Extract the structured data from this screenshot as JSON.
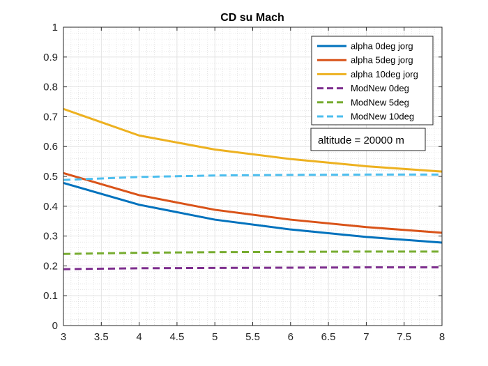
{
  "chart_data": {
    "type": "line",
    "title": "CD su Mach",
    "xlabel": "",
    "ylabel": "",
    "xlim": [
      3,
      8
    ],
    "ylim": [
      0,
      1
    ],
    "x_ticks": [
      "3",
      "3.5",
      "4",
      "4.5",
      "5",
      "5.5",
      "6",
      "6.5",
      "7",
      "7.5",
      "8"
    ],
    "y_ticks": [
      "0",
      "0.1",
      "0.2",
      "0.3",
      "0.4",
      "0.5",
      "0.6",
      "0.7",
      "0.8",
      "0.9",
      "1"
    ],
    "grid": true,
    "minor_grid": true,
    "legend_position": "top-right",
    "annotation": "altitude = 20000 m",
    "x": [
      3,
      4,
      5,
      6,
      7,
      8
    ],
    "series": [
      {
        "name": "alpha 0deg jorg",
        "values": [
          0.478,
          0.405,
          0.355,
          0.322,
          0.297,
          0.278
        ],
        "color": "#0072BD",
        "dash": "solid"
      },
      {
        "name": "alpha 5deg jorg",
        "values": [
          0.511,
          0.437,
          0.388,
          0.355,
          0.33,
          0.311
        ],
        "color": "#D95319",
        "dash": "solid"
      },
      {
        "name": "alpha 10deg jorg",
        "values": [
          0.726,
          0.637,
          0.59,
          0.558,
          0.534,
          0.516
        ],
        "color": "#EDB120",
        "dash": "solid"
      },
      {
        "name": "ModNew 0deg",
        "values": [
          0.189,
          0.192,
          0.193,
          0.194,
          0.195,
          0.195
        ],
        "color": "#7E2F8E",
        "dash": "dashed"
      },
      {
        "name": "ModNew 5deg",
        "values": [
          0.24,
          0.244,
          0.246,
          0.247,
          0.248,
          0.248
        ],
        "color": "#77AC30",
        "dash": "dashed"
      },
      {
        "name": "ModNew 10deg",
        "values": [
          0.488,
          0.498,
          0.503,
          0.505,
          0.506,
          0.506
        ],
        "color": "#4DBEEE",
        "dash": "dashed"
      }
    ]
  }
}
